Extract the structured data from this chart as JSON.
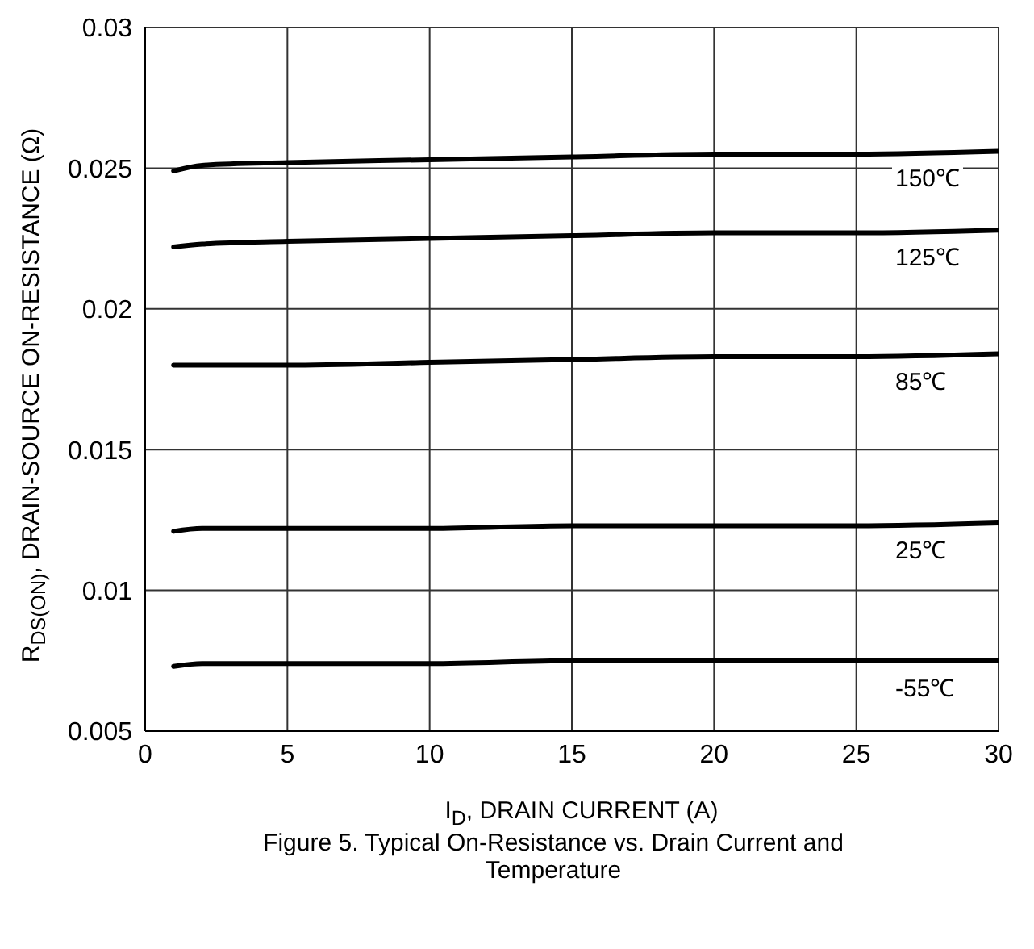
{
  "chart_data": {
    "type": "line",
    "title": "Figure 5. Typical On-Resistance vs. Drain Current and Temperature",
    "xlabel": "I$_{D}$, DRAIN CURRENT (A)",
    "ylabel": "R$_{DS(ON)}$, DRAIN-SOURCE ON-RESISTANCE (Ω)",
    "x": [
      1,
      2,
      5,
      10,
      15,
      20,
      25,
      30
    ],
    "series": [
      {
        "name": "150℃",
        "color": "#000000",
        "values": [
          0.0249,
          0.0251,
          0.0252,
          0.0253,
          0.0254,
          0.0255,
          0.0255,
          0.0256
        ]
      },
      {
        "name": "125℃",
        "color": "#000000",
        "values": [
          0.0222,
          0.0223,
          0.0224,
          0.0225,
          0.0226,
          0.0227,
          0.0227,
          0.0228
        ]
      },
      {
        "name": "85℃",
        "color": "#000000",
        "values": [
          0.018,
          0.018,
          0.018,
          0.0181,
          0.0182,
          0.0183,
          0.0183,
          0.0184
        ]
      },
      {
        "name": "25℃",
        "color": "#000000",
        "values": [
          0.0121,
          0.0122,
          0.0122,
          0.0122,
          0.0123,
          0.0123,
          0.0123,
          0.0124
        ]
      },
      {
        "name": "-55℃",
        "color": "#000000",
        "values": [
          0.0073,
          0.0074,
          0.0074,
          0.0074,
          0.0075,
          0.0075,
          0.0075,
          0.0075
        ]
      }
    ],
    "xlim": [
      0,
      30
    ],
    "xticks": [
      0,
      5,
      10,
      15,
      20,
      25,
      30
    ],
    "ylim": [
      0.005,
      0.03
    ],
    "yticks": [
      0.005,
      0.01,
      0.015,
      0.02,
      0.025,
      0.03
    ],
    "grid": true,
    "legend": false,
    "marker": "none",
    "line_style": "solid"
  }
}
